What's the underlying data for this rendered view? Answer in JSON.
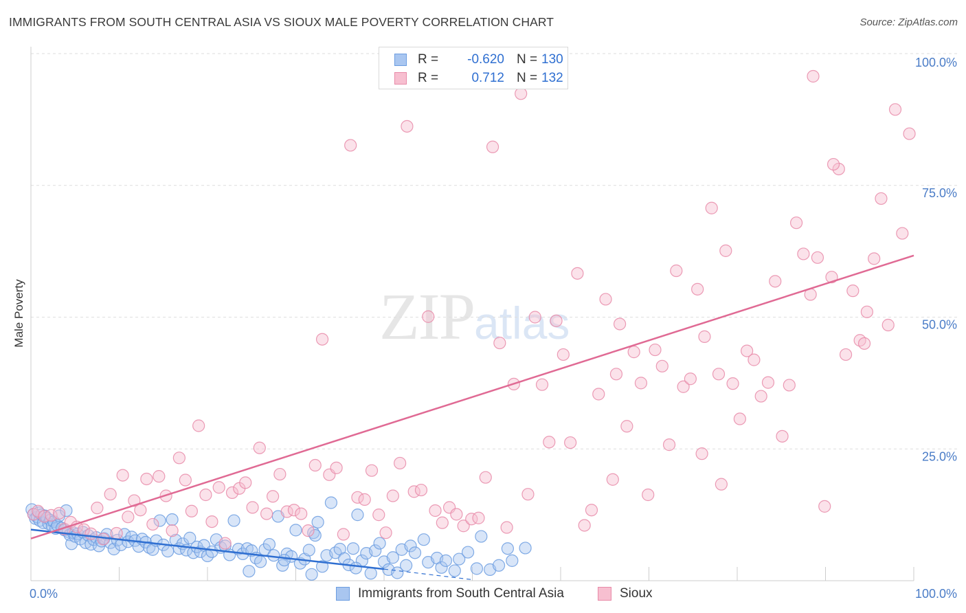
{
  "title": "IMMIGRANTS FROM SOUTH CENTRAL ASIA VS SIOUX MALE POVERTY CORRELATION CHART",
  "source": "Source: ZipAtlas.com",
  "watermark": {
    "zip": "ZIP",
    "atlas": "atlas"
  },
  "legend": [
    {
      "r_label": "R =",
      "r_value": "-0.620",
      "n_label": "N =",
      "n_value": "130",
      "fill": "#a9c6f0",
      "stroke": "#6b9ce0"
    },
    {
      "r_label": "R =",
      "r_value": "0.712",
      "n_label": "N =",
      "n_value": "132",
      "fill": "#f7bfd0",
      "stroke": "#e88aa8"
    }
  ],
  "colors": {
    "blue_point": "#6b9ce0",
    "blue_fill": "#a9c6f0",
    "blue_line": "#2f6fd1",
    "pink_point": "#e88aa8",
    "pink_fill": "#f7bfd0",
    "pink_line": "#e06a94",
    "grid": "#dedede",
    "axis_label": "#4a7cc7"
  },
  "chart_data": {
    "type": "scatter",
    "title": "IMMIGRANTS FROM SOUTH CENTRAL ASIA VS SIOUX MALE POVERTY CORRELATION CHART",
    "xlabel": "",
    "ylabel": "Male Poverty",
    "xlim": [
      0,
      100
    ],
    "ylim": [
      0,
      100
    ],
    "x_tick_labels": [
      "0.0%",
      "100.0%"
    ],
    "y_ticks": [
      25,
      50,
      75,
      100
    ],
    "y_tick_labels": [
      "25.0%",
      "50.0%",
      "75.0%",
      "100.0%"
    ],
    "grid": true,
    "legend_placement": "top-center",
    "series": [
      {
        "name": "Immigrants from South Central Asia",
        "color": "#6b9ce0",
        "trend": {
          "x": [
            0,
            40.0
          ],
          "y": [
            9.7,
            2.2
          ],
          "dashed_extension_to": [
            50.0,
            0.2
          ]
        },
        "points": [
          [
            0.1,
            13.5
          ],
          [
            0.3,
            12.6
          ],
          [
            0.5,
            11.8
          ],
          [
            0.7,
            12.1
          ],
          [
            0.9,
            12.9
          ],
          [
            1.0,
            11.4
          ],
          [
            1.2,
            12.5
          ],
          [
            1.4,
            11.0
          ],
          [
            1.6,
            12.3
          ],
          [
            1.8,
            11.9
          ],
          [
            2.0,
            10.8
          ],
          [
            2.2,
            11.5
          ],
          [
            2.4,
            10.4
          ],
          [
            2.6,
            11.2
          ],
          [
            2.8,
            9.9
          ],
          [
            3.0,
            10.5
          ],
          [
            3.2,
            12.3
          ],
          [
            3.5,
            10.0
          ],
          [
            3.8,
            9.6
          ],
          [
            4.0,
            13.3
          ],
          [
            4.2,
            9.3
          ],
          [
            4.4,
            8.7
          ],
          [
            4.6,
            7.0
          ],
          [
            4.8,
            9.1
          ],
          [
            5.0,
            8.4
          ],
          [
            5.3,
            8.9
          ],
          [
            5.6,
            7.9
          ],
          [
            5.9,
            9.2
          ],
          [
            6.2,
            7.2
          ],
          [
            6.5,
            8.6
          ],
          [
            6.8,
            6.9
          ],
          [
            7.1,
            7.8
          ],
          [
            7.4,
            8.2
          ],
          [
            7.7,
            6.6
          ],
          [
            8.0,
            7.5
          ],
          [
            8.3,
            8.0
          ],
          [
            8.6,
            8.8
          ],
          [
            9.0,
            7.2
          ],
          [
            9.4,
            6.0
          ],
          [
            9.8,
            7.7
          ],
          [
            10.2,
            6.8
          ],
          [
            10.6,
            8.8
          ],
          [
            11.0,
            7.4
          ],
          [
            11.4,
            8.3
          ],
          [
            11.8,
            7.6
          ],
          [
            12.2,
            6.5
          ],
          [
            12.6,
            7.9
          ],
          [
            13.0,
            7.3
          ],
          [
            13.4,
            6.3
          ],
          [
            13.8,
            5.9
          ],
          [
            14.2,
            7.6
          ],
          [
            14.6,
            11.4
          ],
          [
            15.0,
            6.8
          ],
          [
            15.5,
            5.6
          ],
          [
            16.0,
            11.6
          ],
          [
            16.4,
            7.7
          ],
          [
            16.8,
            6.1
          ],
          [
            17.2,
            7.0
          ],
          [
            17.6,
            5.8
          ],
          [
            18.0,
            8.1
          ],
          [
            18.4,
            5.3
          ],
          [
            18.8,
            6.4
          ],
          [
            19.2,
            5.5
          ],
          [
            19.6,
            6.7
          ],
          [
            20.0,
            4.7
          ],
          [
            20.5,
            5.5
          ],
          [
            21.0,
            7.8
          ],
          [
            21.5,
            6.3
          ],
          [
            22.0,
            6.6
          ],
          [
            22.5,
            4.9
          ],
          [
            23.0,
            11.4
          ],
          [
            23.5,
            6.0
          ],
          [
            24.0,
            5.1
          ],
          [
            24.5,
            6.1
          ],
          [
            25.0,
            5.7
          ],
          [
            25.5,
            4.3
          ],
          [
            26.0,
            3.6
          ],
          [
            26.5,
            5.9
          ],
          [
            27.0,
            6.9
          ],
          [
            27.5,
            4.8
          ],
          [
            28.0,
            12.2
          ],
          [
            28.5,
            2.9
          ],
          [
            29.0,
            5.1
          ],
          [
            29.5,
            4.6
          ],
          [
            30.0,
            9.6
          ],
          [
            30.5,
            3.3
          ],
          [
            31.0,
            4.1
          ],
          [
            31.5,
            5.8
          ],
          [
            32.0,
            9.1
          ],
          [
            32.5,
            11.1
          ],
          [
            33.0,
            2.7
          ],
          [
            33.5,
            4.8
          ],
          [
            34.0,
            14.8
          ],
          [
            34.5,
            5.3
          ],
          [
            35.0,
            6.0
          ],
          [
            35.5,
            4.2
          ],
          [
            36.0,
            3.0
          ],
          [
            36.5,
            6.1
          ],
          [
            37.0,
            12.5
          ],
          [
            37.5,
            3.8
          ],
          [
            38.0,
            5.2
          ],
          [
            38.5,
            1.4
          ],
          [
            39.0,
            5.7
          ],
          [
            39.5,
            7.1
          ],
          [
            40.0,
            3.6
          ],
          [
            40.5,
            2.1
          ],
          [
            41.0,
            4.4
          ],
          [
            41.5,
            1.5
          ],
          [
            42.0,
            5.9
          ],
          [
            43.0,
            6.6
          ],
          [
            43.5,
            5.3
          ],
          [
            44.5,
            7.8
          ],
          [
            45.0,
            3.5
          ],
          [
            46.0,
            4.3
          ],
          [
            46.5,
            2.5
          ],
          [
            47.0,
            3.8
          ],
          [
            48.0,
            1.9
          ],
          [
            48.5,
            4.1
          ],
          [
            49.5,
            5.4
          ],
          [
            50.5,
            2.3
          ],
          [
            51.0,
            8.4
          ],
          [
            52.0,
            2.1
          ],
          [
            53.0,
            2.9
          ],
          [
            54.0,
            6.1
          ],
          [
            54.5,
            3.8
          ],
          [
            56.0,
            6.2
          ],
          [
            32.2,
            8.6
          ],
          [
            42.5,
            2.9
          ],
          [
            24.7,
            1.8
          ],
          [
            28.7,
            3.9
          ],
          [
            31.8,
            1.2
          ],
          [
            36.8,
            2.4
          ]
        ]
      },
      {
        "name": "Sioux",
        "color": "#e88aa8",
        "trend": {
          "x": [
            0,
            100.0
          ],
          "y": [
            8.0,
            61.7
          ]
        },
        "points": [
          [
            0.3,
            12.6
          ],
          [
            0.8,
            13.2
          ],
          [
            1.5,
            12.2
          ],
          [
            2.3,
            12.4
          ],
          [
            3.2,
            12.8
          ],
          [
            3.8,
            9.8
          ],
          [
            4.5,
            11.1
          ],
          [
            5.2,
            10.2
          ],
          [
            6.0,
            9.7
          ],
          [
            6.8,
            8.9
          ],
          [
            7.5,
            13.8
          ],
          [
            8.2,
            7.9
          ],
          [
            9.0,
            16.4
          ],
          [
            9.7,
            9.0
          ],
          [
            10.4,
            20.0
          ],
          [
            11.0,
            12.1
          ],
          [
            11.7,
            15.2
          ],
          [
            12.4,
            13.4
          ],
          [
            13.1,
            19.3
          ],
          [
            13.8,
            10.7
          ],
          [
            14.5,
            19.8
          ],
          [
            15.3,
            16.1
          ],
          [
            16.0,
            9.5
          ],
          [
            16.8,
            23.3
          ],
          [
            17.5,
            19.1
          ],
          [
            18.2,
            13.2
          ],
          [
            19.0,
            29.4
          ],
          [
            19.8,
            16.3
          ],
          [
            20.5,
            11.2
          ],
          [
            21.3,
            17.7
          ],
          [
            22.0,
            7.1
          ],
          [
            22.8,
            16.7
          ],
          [
            23.6,
            17.5
          ],
          [
            24.3,
            18.6
          ],
          [
            25.1,
            13.9
          ],
          [
            25.9,
            25.2
          ],
          [
            26.7,
            12.7
          ],
          [
            27.4,
            16.0
          ],
          [
            28.2,
            20.2
          ],
          [
            29.0,
            13.1
          ],
          [
            29.8,
            13.4
          ],
          [
            30.6,
            12.7
          ],
          [
            31.4,
            9.5
          ],
          [
            32.2,
            21.9
          ],
          [
            33.0,
            45.8
          ],
          [
            33.8,
            20.1
          ],
          [
            34.6,
            21.4
          ],
          [
            35.4,
            8.8
          ],
          [
            36.2,
            82.6
          ],
          [
            37.0,
            15.8
          ],
          [
            37.8,
            15.4
          ],
          [
            38.6,
            20.9
          ],
          [
            39.4,
            12.5
          ],
          [
            40.2,
            9.1
          ],
          [
            41.0,
            16.1
          ],
          [
            41.8,
            22.3
          ],
          [
            42.6,
            86.2
          ],
          [
            43.4,
            16.9
          ],
          [
            44.2,
            17.2
          ],
          [
            45.0,
            50.1
          ],
          [
            45.8,
            13.3
          ],
          [
            46.6,
            11.0
          ],
          [
            47.4,
            13.9
          ],
          [
            48.2,
            12.6
          ],
          [
            49.0,
            10.4
          ],
          [
            49.9,
            11.7
          ],
          [
            50.7,
            11.9
          ],
          [
            51.5,
            19.6
          ],
          [
            52.3,
            82.3
          ],
          [
            53.1,
            45.1
          ],
          [
            53.9,
            10.1
          ],
          [
            54.7,
            37.3
          ],
          [
            55.5,
            92.4
          ],
          [
            56.3,
            16.4
          ],
          [
            57.1,
            50.0
          ],
          [
            57.9,
            37.2
          ],
          [
            58.7,
            26.3
          ],
          [
            59.5,
            49.3
          ],
          [
            60.3,
            42.9
          ],
          [
            61.1,
            26.2
          ],
          [
            61.9,
            58.3
          ],
          [
            62.7,
            10.5
          ],
          [
            63.5,
            13.4
          ],
          [
            64.3,
            35.4
          ],
          [
            65.1,
            53.4
          ],
          [
            65.9,
            19.2
          ],
          [
            66.7,
            48.7
          ],
          [
            67.5,
            29.3
          ],
          [
            68.3,
            43.4
          ],
          [
            69.1,
            37.5
          ],
          [
            69.9,
            16.3
          ],
          [
            70.7,
            43.8
          ],
          [
            71.5,
            40.7
          ],
          [
            72.3,
            25.8
          ],
          [
            73.1,
            58.8
          ],
          [
            73.9,
            36.8
          ],
          [
            74.7,
            38.3
          ],
          [
            75.5,
            55.3
          ],
          [
            76.3,
            46.3
          ],
          [
            77.1,
            70.7
          ],
          [
            77.9,
            39.2
          ],
          [
            78.7,
            62.6
          ],
          [
            79.5,
            37.4
          ],
          [
            80.3,
            30.7
          ],
          [
            81.1,
            43.6
          ],
          [
            81.9,
            41.9
          ],
          [
            82.7,
            35.0
          ],
          [
            83.5,
            37.6
          ],
          [
            84.3,
            56.8
          ],
          [
            85.1,
            27.4
          ],
          [
            85.9,
            37.1
          ],
          [
            86.7,
            67.9
          ],
          [
            87.5,
            62.0
          ],
          [
            88.3,
            54.3
          ],
          [
            89.1,
            61.3
          ],
          [
            89.9,
            14.1
          ],
          [
            90.7,
            57.6
          ],
          [
            91.5,
            78.1
          ],
          [
            92.3,
            42.9
          ],
          [
            93.1,
            55.0
          ],
          [
            93.9,
            45.6
          ],
          [
            94.7,
            51.0
          ],
          [
            95.5,
            61.1
          ],
          [
            96.3,
            72.5
          ],
          [
            97.1,
            48.5
          ],
          [
            97.9,
            89.4
          ],
          [
            98.7,
            65.9
          ],
          [
            99.5,
            84.8
          ],
          [
            88.6,
            95.7
          ],
          [
            90.9,
            79.0
          ],
          [
            94.4,
            45.0
          ],
          [
            78.2,
            18.3
          ],
          [
            66.3,
            39.2
          ],
          [
            76.0,
            24.1
          ]
        ]
      }
    ]
  },
  "axis": {
    "y_title": "Male Poverty",
    "x_min_label": "0.0%",
    "x_max_label": "100.0%"
  }
}
